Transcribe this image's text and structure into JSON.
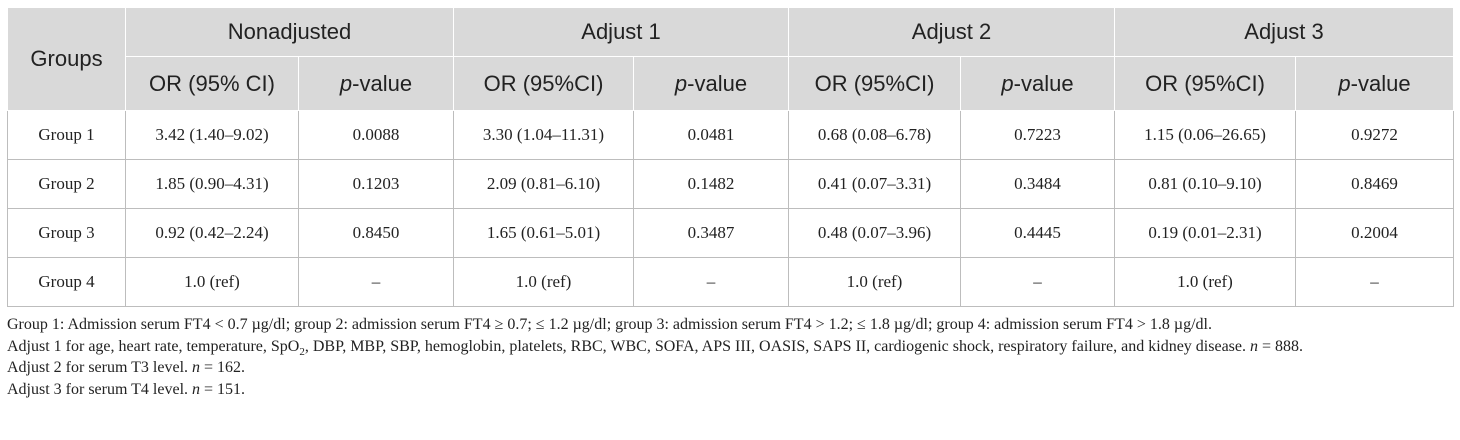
{
  "table": {
    "groups_label": "Groups",
    "headers": [
      "Nonadjusted",
      "Adjust 1",
      "Adjust 2",
      "Adjust 3"
    ],
    "sub_headers": [
      {
        "or": "OR (95% CI)",
        "p_italic": "p",
        "p_rest": "-value"
      },
      {
        "or": "OR (95%CI)",
        "p_italic": "p",
        "p_rest": "-value"
      },
      {
        "or": "OR (95%CI)",
        "p_italic": "p",
        "p_rest": "-value"
      },
      {
        "or": "OR (95%CI)",
        "p_italic": "p",
        "p_rest": "-value"
      }
    ],
    "rows": [
      {
        "group": "Group 1",
        "cells": [
          "3.42 (1.40–9.02)",
          "0.0088",
          "3.30 (1.04–11.31)",
          "0.0481",
          "0.68 (0.08–6.78)",
          "0.7223",
          "1.15 (0.06–26.65)",
          "0.9272"
        ]
      },
      {
        "group": "Group 2",
        "cells": [
          "1.85 (0.90–4.31)",
          "0.1203",
          "2.09 (0.81–6.10)",
          "0.1482",
          "0.41 (0.07–3.31)",
          "0.3484",
          "0.81 (0.10–9.10)",
          "0.8469"
        ]
      },
      {
        "group": "Group 3",
        "cells": [
          "0.92 (0.42–2.24)",
          "0.8450",
          "1.65 (0.61–5.01)",
          "0.3487",
          "0.48 (0.07–3.96)",
          "0.4445",
          "0.19 (0.01–2.31)",
          "0.2004"
        ]
      },
      {
        "group": "Group 4",
        "cells": [
          "1.0 (ref)",
          "–",
          "1.0 (ref)",
          "–",
          "1.0 (ref)",
          "–",
          "1.0 (ref)",
          "–"
        ]
      }
    ]
  },
  "notes": {
    "line1": "Group 1: Admission serum FT4 < 0.7 µg/dl; group 2: admission serum FT4 ≥ 0.7; ≤ 1.2 µg/dl; group 3: admission serum FT4 > 1.2; ≤ 1.8 µg/dl; group 4: admission serum FT4 > 1.8 µg/dl.",
    "line2_a": "Adjust 1 for age, heart rate, temperature, SpO",
    "line2_sub": "2",
    "line2_b": ", DBP, MBP, SBP, hemoglobin, platelets, RBC, WBC, SOFA, APS III, OASIS, SAPS II, cardiogenic shock, respiratory failure, and kidney disease. ",
    "line2_n": "n",
    "line2_c": " = 888.",
    "line3_a": "Adjust 2 for serum T3 level. ",
    "line3_n": "n",
    "line3_b": " = 162.",
    "line4_a": "Adjust 3 for serum T4 level. ",
    "line4_n": "n",
    "line4_b": " = 151."
  }
}
